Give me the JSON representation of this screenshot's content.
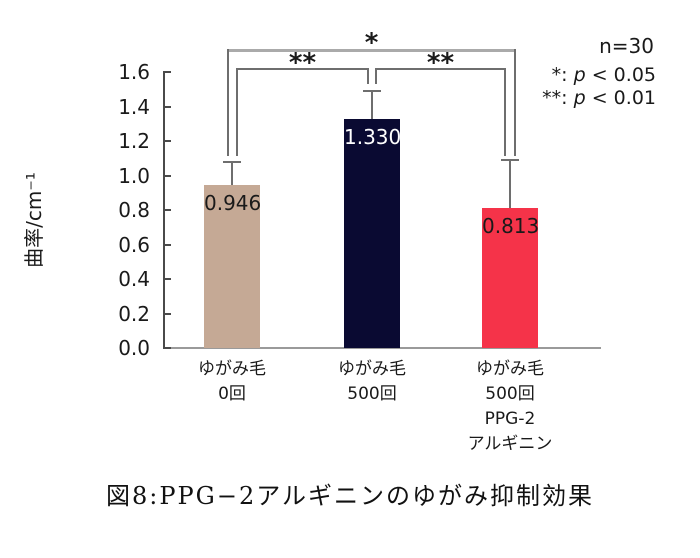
{
  "figure": {
    "caption": "図8:PPG−2アルギニンのゆがみ抑制効果"
  },
  "chart_data": {
    "type": "bar",
    "title": "",
    "xlabel": "",
    "ylabel": "曲率/cm⁻¹",
    "ylim": [
      0,
      1.6
    ],
    "ytick_step": 0.2,
    "yticks": [
      "0.0",
      "0.2",
      "0.4",
      "0.6",
      "0.8",
      "1.0",
      "1.2",
      "1.4",
      "1.6"
    ],
    "grid": false,
    "categories": [
      [
        "ゆがみ毛",
        "0回"
      ],
      [
        "ゆがみ毛",
        "500回"
      ],
      [
        "ゆがみ毛",
        "500回",
        "PPG-2",
        "アルギニン"
      ]
    ],
    "values": [
      0.946,
      1.33,
      0.813
    ],
    "value_labels": [
      "0.946",
      "1.330",
      "0.813"
    ],
    "error_bar_tops": [
      1.08,
      1.49,
      1.09
    ],
    "bar_colors": [
      "#c5a995",
      "#0a0a32",
      "#f53349"
    ],
    "value_label_colors": [
      "#1a1a1a",
      "#ffffff",
      "#1a1a1a"
    ],
    "significance": [
      {
        "label": "*",
        "from": 0,
        "to": 2
      },
      {
        "label": "**",
        "from": 0,
        "to": 1
      },
      {
        "label": "**",
        "from": 1,
        "to": 2
      }
    ],
    "legend": {
      "position": "top-right",
      "n": "n=30",
      "entries": [
        {
          "pre": "*: ",
          "p": "p",
          "post": " < 0.05"
        },
        {
          "pre": "**: ",
          "p": "p",
          "post": " < 0.01"
        }
      ]
    }
  }
}
